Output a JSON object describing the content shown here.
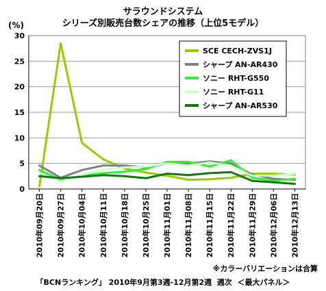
{
  "chart_data": {
    "type": "line",
    "title": "サラウンドシステム",
    "subtitle": "シリーズ別販売台数シェアの推移（上位5モデル）",
    "ylabel": "(%)",
    "ylim": [
      0,
      30
    ],
    "yticks": [
      0,
      5,
      10,
      15,
      20,
      25,
      30
    ],
    "grid": true,
    "legend_position": "top-right",
    "categories": [
      "2010年09月20日",
      "2010年09月27日",
      "2010年10月04日",
      "2010年10月11日",
      "2010年10月18日",
      "2010年10月25日",
      "2010年11月01日",
      "2010年11月08日",
      "2010年11月15日",
      "2010年11月22日",
      "2010年11月29日",
      "2010年12月06日",
      "2010年12月13日"
    ],
    "series": [
      {
        "name": "SCE CECH-ZVS1J",
        "color": "#99cc00",
        "values": [
          0.5,
          28.5,
          9.0,
          5.8,
          4.0,
          3.2,
          2.6,
          1.8,
          1.9,
          2.2,
          3.0,
          3.0,
          2.8
        ]
      },
      {
        "name": "シャープ AN-AR430",
        "color": "#808080",
        "values": [
          4.6,
          2.2,
          3.7,
          4.6,
          4.6,
          4.2,
          5.0,
          5.0,
          5.4,
          5.0,
          2.8,
          2.0,
          1.8
        ]
      },
      {
        "name": "ソニー RHT-G550",
        "color": "#33ee33",
        "values": [
          3.7,
          1.8,
          2.6,
          3.1,
          3.4,
          3.9,
          5.3,
          5.3,
          4.4,
          5.6,
          2.2,
          1.6,
          2.0
        ]
      },
      {
        "name": "ソニー RHT-G11",
        "color": "#ccffcc",
        "values": [
          3.2,
          1.5,
          2.8,
          3.8,
          4.2,
          4.4,
          5.0,
          4.6,
          5.2,
          4.5,
          2.6,
          2.6,
          3.0
        ]
      },
      {
        "name": "シャープ AN-AR530",
        "color": "#117711",
        "values": [
          2.5,
          2.1,
          2.4,
          2.7,
          2.5,
          2.1,
          3.0,
          2.7,
          3.1,
          3.3,
          1.6,
          1.3,
          1.0
        ]
      }
    ]
  },
  "note": "※カラーバリエーションは合算",
  "footer": "「BCNランキング」 2010年9月第3週-12月第2週  週次  ＜最大パネル＞"
}
